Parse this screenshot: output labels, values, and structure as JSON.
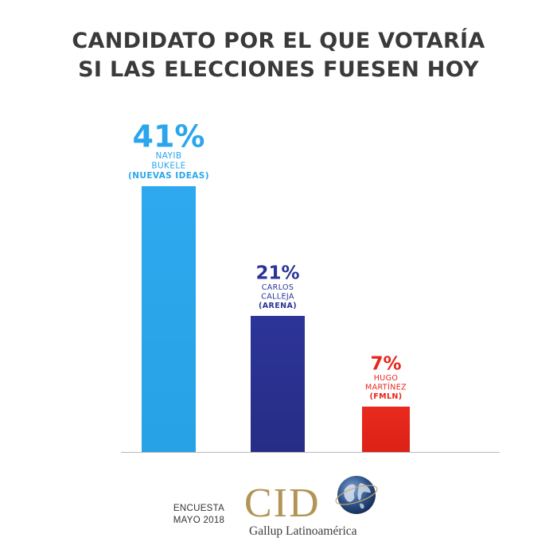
{
  "title": {
    "line1": "CANDIDATO POR EL QUE VOTARÍA",
    "line2": "SI LAS ELECCIONES FUESEN HOY"
  },
  "chart_data": {
    "type": "bar",
    "title": "CANDIDATO POR EL QUE VOTARÍA SI LAS ELECCIONES FUESEN HOY",
    "categories": [
      "NAYIB BUKELE (NUEVAS IDEAS)",
      "CARLOS CALLEJA (ARENA)",
      "HUGO MARTÍNEZ (FMLN)"
    ],
    "values": [
      41,
      21,
      7
    ],
    "value_labels": [
      "41%",
      "21%",
      "7%"
    ],
    "label_lines": [
      [
        "NAYIB",
        "BUKELE",
        "(NUEVAS IDEAS)"
      ],
      [
        "CARLOS",
        "CALLEJA",
        "(ARENA)"
      ],
      [
        "HUGO",
        "MARTÍNEZ",
        "(FMLN)"
      ]
    ],
    "colors": [
      "#2ba6ec",
      "#2b3396",
      "#e8251b"
    ],
    "ylim": [
      0,
      41
    ],
    "grid": false,
    "legend": "none"
  },
  "footer": {
    "note_line1": "ENCUESTA",
    "note_line2": "MAYO 2018"
  },
  "logo": {
    "letters": "CID",
    "subtitle": "Gallup Latinoamérica"
  }
}
